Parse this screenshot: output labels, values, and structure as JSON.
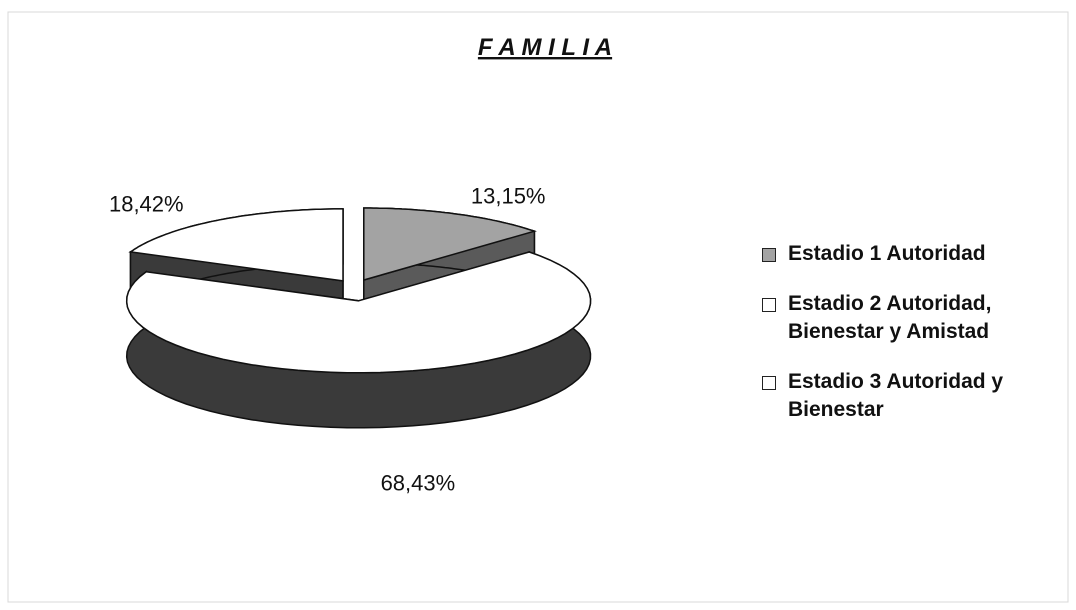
{
  "chart_data": {
    "type": "pie",
    "title": "F A M I L I A",
    "categories": [
      "Estadio 1 Autoridad",
      "Estadio 2 Autoridad, Bienestar y Amistad",
      "Estadio 3 Autoridad y Bienestar"
    ],
    "values": [
      13.15,
      68.43,
      18.42
    ],
    "value_labels": [
      "13,15%",
      "68,43%",
      "18,42%"
    ],
    "colors": [
      "#a3a3a3",
      "#ffffff",
      "#ffffff"
    ],
    "legend": "right"
  }
}
